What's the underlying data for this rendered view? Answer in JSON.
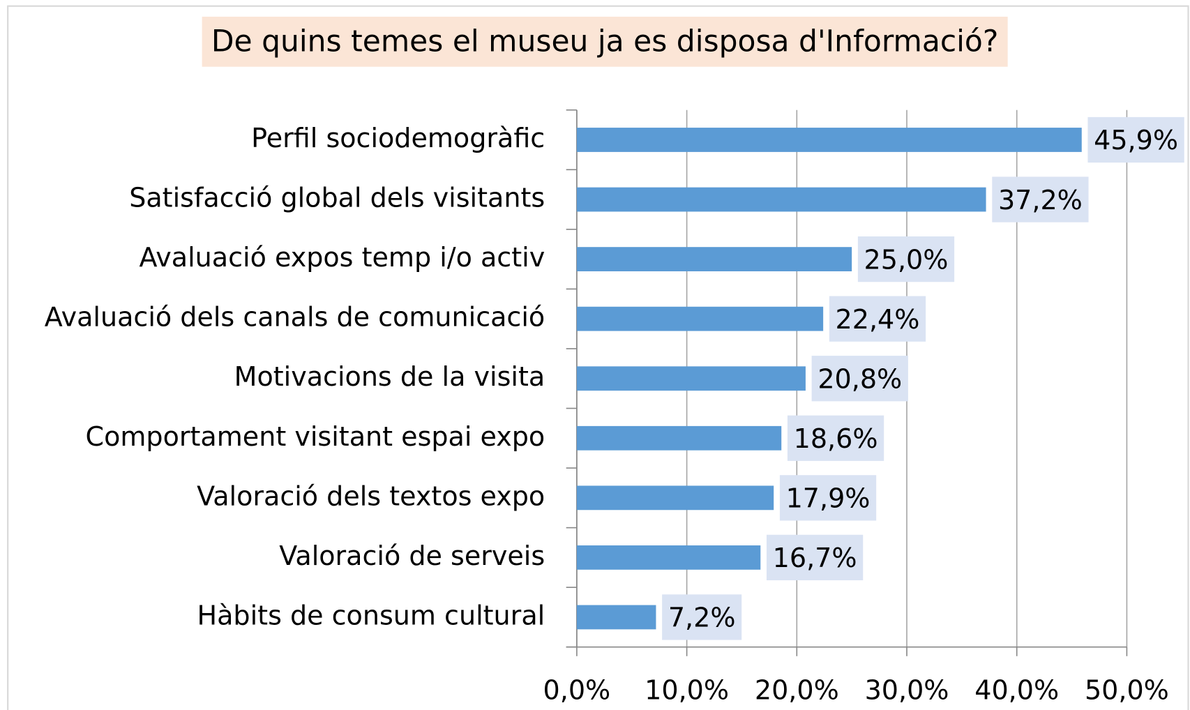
{
  "chart_data": {
    "type": "bar",
    "orientation": "horizontal",
    "title": "De quins temes el museu ja es disposa d'Informació?",
    "categories": [
      "Perfil sociodemogràfic",
      "Satisfacció global dels visitants",
      "Avaluació expos temp i/o activ",
      "Avaluació dels canals de comunicació",
      "Motivacions de la visita",
      "Comportament visitant espai expo",
      "Valoració dels textos expo",
      "Valoració de serveis",
      "Hàbits de consum cultural"
    ],
    "values": [
      45.9,
      37.2,
      25.0,
      22.4,
      20.8,
      18.6,
      17.9,
      16.7,
      7.2
    ],
    "value_labels": [
      "45,9%",
      "37,2%",
      "25,0%",
      "22,4%",
      "20,8%",
      "18,6%",
      "17,9%",
      "16,7%",
      "7,2%"
    ],
    "color": "#5b9bd5",
    "xlim": [
      0,
      50
    ],
    "xticks": [
      {
        "value": 0,
        "label": "0,0%"
      },
      {
        "value": 10,
        "label": "10,0%"
      },
      {
        "value": 20,
        "label": "20,0%"
      },
      {
        "value": 30,
        "label": "30,0%"
      },
      {
        "value": 40,
        "label": "40,0%"
      },
      {
        "value": 50,
        "label": "50,0%"
      }
    ],
    "grid": true
  }
}
